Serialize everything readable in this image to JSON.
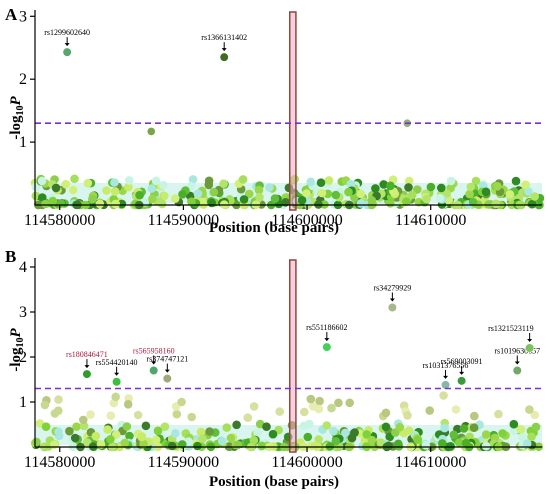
{
  "chart_data": [
    {
      "panel": "A",
      "type": "scatter",
      "xlabel": "Position (base pairs)",
      "ylabel_main": "-log",
      "ylabel_sub": "10",
      "ylabel_var": "P",
      "xlim": [
        114578000,
        114619000
      ],
      "ylim": [
        0,
        3.1
      ],
      "xticks": [
        114580000,
        114590000,
        114600000,
        114610000
      ],
      "xtick_labels": [
        "114580000",
        "114590000",
        "114600000",
        "114610000"
      ],
      "yticks": [
        1,
        2,
        3
      ],
      "ytick_labels": [
        "1",
        "2",
        "3"
      ],
      "threshold": 1.3,
      "highlight_region": [
        114598600,
        114599100
      ],
      "labeled_points": [
        {
          "x": 114580600,
          "y": 2.43,
          "label": "rs1299602640",
          "color": "#55a86b"
        },
        {
          "x": 114593300,
          "y": 2.35,
          "label": "rs1366131402",
          "color": "#3f6b24"
        }
      ],
      "extra_points": [
        {
          "x": 114587400,
          "y": 1.17,
          "color": "#7aa34a"
        },
        {
          "x": 114608100,
          "y": 1.3,
          "color": "#8fae7a"
        }
      ]
    },
    {
      "panel": "B",
      "type": "scatter",
      "xlabel": "Position (base pairs)",
      "ylabel_main": "-log",
      "ylabel_sub": "10",
      "ylabel_var": "P",
      "xlim": [
        114578000,
        114619000
      ],
      "ylim": [
        0,
        4.2
      ],
      "xticks": [
        114580000,
        114590000,
        114600000,
        114610000
      ],
      "xtick_labels": [
        "114580000",
        "114590000",
        "114600000",
        "114610000"
      ],
      "yticks": [
        1,
        2,
        3,
        4
      ],
      "ytick_labels": [
        "1",
        "2",
        "3",
        "4"
      ],
      "threshold": 1.3,
      "highlight_region": [
        114598600,
        114599100
      ],
      "labeled_points": [
        {
          "x": 114582200,
          "y": 1.62,
          "label": "rs180846471",
          "color": "#2d9b2d",
          "red": true
        },
        {
          "x": 114584600,
          "y": 1.45,
          "label": "rs554420140",
          "color": "#3cbf3c",
          "red": false
        },
        {
          "x": 114587600,
          "y": 1.7,
          "label": "rs565958160",
          "color": "#4fa86a",
          "red": true
        },
        {
          "x": 114588700,
          "y": 1.52,
          "label": "rs374747121",
          "color": "#a0a878",
          "red": false
        },
        {
          "x": 114601600,
          "y": 2.22,
          "label": "rs551186602",
          "color": "#3fd25a",
          "red": false
        },
        {
          "x": 114606900,
          "y": 3.1,
          "label": "rs34279929",
          "color": "#a9b88a",
          "red": false
        },
        {
          "x": 114611200,
          "y": 1.38,
          "label": "rs1031376556",
          "color": "#8ab6aa",
          "red": false
        },
        {
          "x": 114612500,
          "y": 1.47,
          "label": "rs569003091",
          "color": "#3a9a3a",
          "red": false
        },
        {
          "x": 114617000,
          "y": 1.7,
          "label": "rs1019630657",
          "color": "#74a86a",
          "red": false
        },
        {
          "x": 114618000,
          "y": 2.2,
          "label": "rs1321523119",
          "color": "#7ac25a",
          "red": false
        }
      ]
    }
  ]
}
